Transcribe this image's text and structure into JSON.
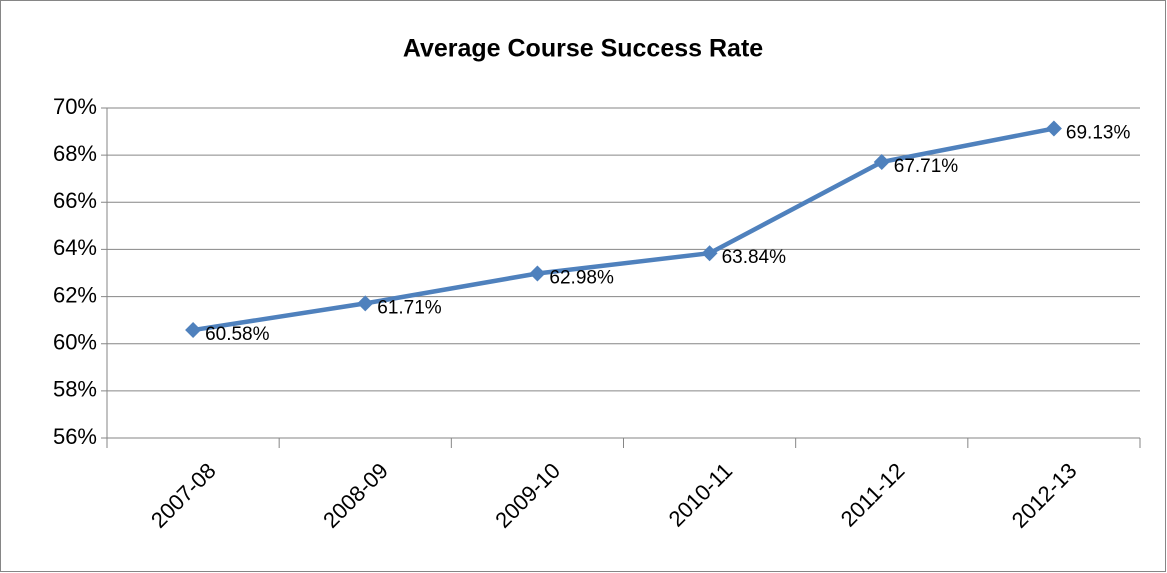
{
  "chart_data": {
    "type": "line",
    "title": "Average Course Success Rate",
    "categories": [
      "2007-08",
      "2008-09",
      "2009-10",
      "2010-11",
      "2011-12",
      "2012-13"
    ],
    "series": [
      {
        "color": "#4f81bd",
        "values": [
          60.58,
          61.71,
          62.98,
          63.84,
          67.71,
          69.13
        ],
        "value_labels": [
          "60.58%",
          "61.71%",
          "62.98%",
          "63.84%",
          "67.71%",
          "69.13%"
        ]
      }
    ],
    "ylim": [
      56,
      70
    ],
    "yticks": [
      {
        "value": 56,
        "label": "56%"
      },
      {
        "value": 58,
        "label": "58%"
      },
      {
        "value": 60,
        "label": "60%"
      },
      {
        "value": 62,
        "label": "62%"
      },
      {
        "value": 64,
        "label": "64%"
      },
      {
        "value": 66,
        "label": "66%"
      },
      {
        "value": 68,
        "label": "68%"
      },
      {
        "value": 70,
        "label": "70%"
      }
    ],
    "grid": true
  }
}
